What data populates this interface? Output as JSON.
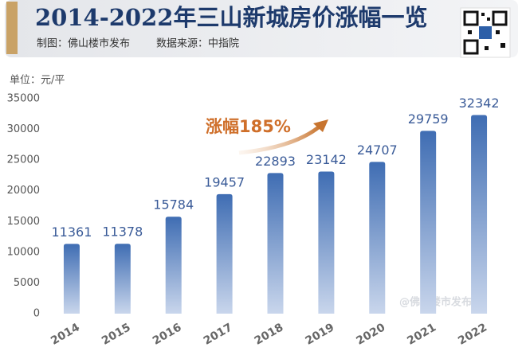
{
  "chart_data": {
    "type": "bar",
    "title": "2014-2022年三山新城房价涨幅一览",
    "subtitle": [
      "制图：佛山楼市发布",
      "数据来源：中指院"
    ],
    "unit_label": "单位：元/平",
    "annotation": "涨幅185%",
    "watermark": "@佛山楼市发布",
    "categories": [
      "2014",
      "2015",
      "2016",
      "2017",
      "2018",
      "2019",
      "2020",
      "2021",
      "2022"
    ],
    "values": [
      11361,
      11378,
      15784,
      19457,
      22893,
      23142,
      24707,
      29759,
      32342
    ],
    "color": "#3f6db3",
    "ylim": [
      0,
      35000
    ],
    "yticks": [
      0,
      5000,
      10000,
      15000,
      20000,
      25000,
      30000,
      35000
    ],
    "grid": false
  }
}
